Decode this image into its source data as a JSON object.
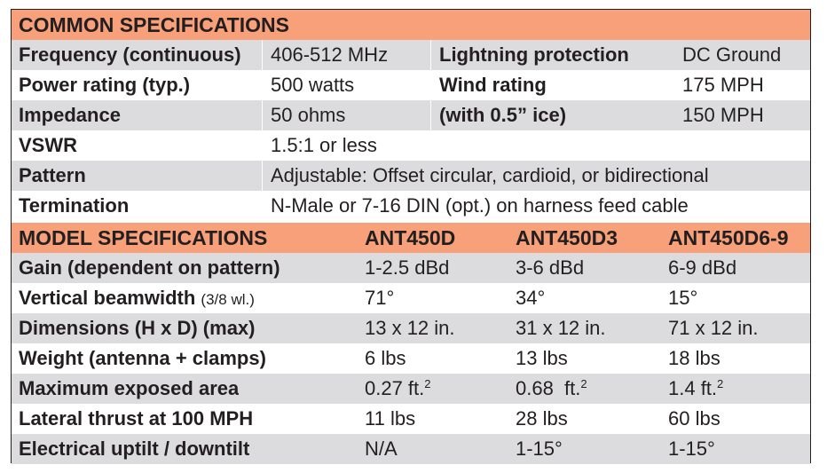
{
  "common": {
    "heading": "COMMON SPECIFICATIONS",
    "frequency": {
      "label": "Frequency (continuous)",
      "value": "406-512 MHz"
    },
    "lightning": {
      "label": "Lightning protection",
      "value": "DC Ground"
    },
    "power": {
      "label": "Power rating (typ.)",
      "value": "500 watts"
    },
    "wind": {
      "label": "Wind rating",
      "value": "175 MPH"
    },
    "impedance": {
      "label": "Impedance",
      "value": "50 ohms"
    },
    "ice": {
      "label": "(with 0.5” ice)",
      "value": "150 MPH"
    },
    "vswr": {
      "label": "VSWR",
      "value": "1.5:1 or less"
    },
    "pattern": {
      "label": "Pattern",
      "value": "Adjustable: Offset circular, cardioid, or bidirectional"
    },
    "termination": {
      "label": "Termination",
      "value": "N-Male or 7-16 DIN (opt.) on harness feed cable"
    }
  },
  "model": {
    "heading": "MODEL SPECIFICATIONS",
    "models": [
      "ANT450D",
      "ANT450D3",
      "ANT450D6-9"
    ],
    "rows": [
      {
        "label": "Gain (dependent on pattern)",
        "values": [
          "1-2.5 dBd",
          "3-6 dBd",
          "6-9 dBd"
        ]
      },
      {
        "label": "Vertical beamwidth",
        "label_sub": "(3/8 wl.)",
        "values": [
          "71°",
          "34°",
          "15°"
        ]
      },
      {
        "label": "Dimensions (H x D) (max)",
        "values": [
          "13 x 12 in.",
          "31 x 12 in.",
          "71 x 12 in."
        ]
      },
      {
        "label": "Weight (antenna + clamps)",
        "values": [
          "6 lbs",
          "13 lbs",
          "18 lbs"
        ]
      },
      {
        "label": "Maximum exposed area",
        "values": [
          "0.27 ft.",
          "0.68  ft.",
          "1.4 ft."
        ],
        "unit_sup": "2"
      },
      {
        "label": "Lateral thrust at 100 MPH",
        "values": [
          "11 lbs",
          "28 lbs",
          "60 lbs"
        ]
      },
      {
        "label": "Electrical uptilt / downtilt",
        "values": [
          "N/A",
          "1-15°",
          "1-15°"
        ]
      }
    ]
  },
  "colors": {
    "header_bg": "#f7a07a",
    "stripe_bg": "#dcdcde",
    "text": "#231f20"
  }
}
